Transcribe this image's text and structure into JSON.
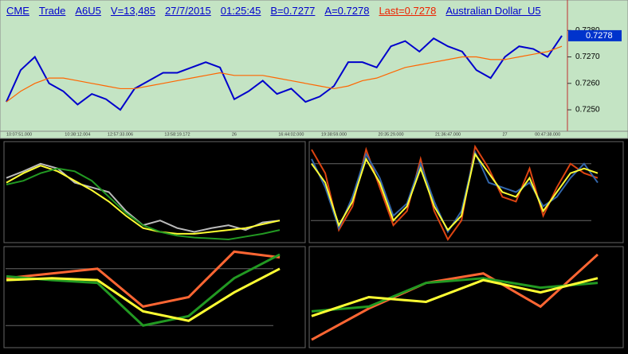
{
  "chart_data": [
    {
      "type": "line",
      "header": [
        "CME",
        "Trade",
        "A6U5",
        "V=13,485",
        "27/7/2015",
        "01:25:45",
        "B=0.7277",
        "A=0.7278",
        "Last=0.7278",
        "Australian Dollar  U5"
      ],
      "categories": [
        "10:07:51.000",
        null,
        null,
        null,
        null,
        "10:38:12.004",
        null,
        null,
        "12:57:33.006",
        null,
        null,
        null,
        "13:58:19.172",
        null,
        null,
        null,
        "26",
        null,
        null,
        null,
        "16:44:02.000",
        null,
        null,
        "19:38:59.000",
        null,
        null,
        null,
        "20:35:29.000",
        null,
        null,
        null,
        "21:36:47.000",
        null,
        null,
        null,
        "27",
        null,
        null,
        "00:47:38.000",
        null
      ],
      "series": [
        {
          "color": "#0000cc",
          "values": [
            0.7253,
            0.7265,
            0.727,
            0.726,
            0.7257,
            0.7252,
            0.7256,
            0.7254,
            0.725,
            0.7258,
            0.7261,
            0.7264,
            0.7264,
            0.7266,
            0.7268,
            0.7266,
            0.7254,
            0.7257,
            0.7261,
            0.7256,
            0.7258,
            0.7253,
            0.7255,
            0.7259,
            0.7268,
            0.7268,
            0.7266,
            0.7274,
            0.7276,
            0.7272,
            0.7277,
            0.7274,
            0.7272,
            0.7265,
            0.7262,
            0.727,
            0.7274,
            0.7273,
            0.727,
            0.7278
          ]
        },
        {
          "color": "#ff6600",
          "values": [
            0.7253,
            0.7257,
            0.726,
            0.7262,
            0.7262,
            0.7261,
            0.726,
            0.7259,
            0.7258,
            0.7258,
            0.7259,
            0.726,
            0.7261,
            0.7262,
            0.7263,
            0.7264,
            0.7263,
            0.7263,
            0.7263,
            0.7262,
            0.7261,
            0.726,
            0.7259,
            0.7258,
            0.7259,
            0.7261,
            0.7262,
            0.7264,
            0.7266,
            0.7267,
            0.7268,
            0.7269,
            0.727,
            0.727,
            0.7269,
            0.7269,
            0.727,
            0.7271,
            0.7272,
            0.7274
          ]
        }
      ],
      "ylim": [
        0.72425,
        0.729
      ],
      "yticks": [
        {
          "value": 0.725,
          "label": "0.7250"
        },
        {
          "value": 0.726,
          "label": "0.7260"
        },
        {
          "value": 0.727,
          "label": "0.7270"
        },
        {
          "value": 0.728,
          "label": "0.7280"
        }
      ],
      "last": 0.7278,
      "last_color": "#0033cc"
    },
    {
      "type": "line",
      "ylim": [
        0,
        100
      ],
      "series": [
        {
          "color": "#bbbbbb",
          "values": [
            65,
            72,
            80,
            75,
            60,
            55,
            50,
            30,
            15,
            20,
            12,
            8,
            12,
            15,
            10,
            18,
            20
          ]
        },
        {
          "color": "#ffff33",
          "values": [
            60,
            70,
            78,
            72,
            62,
            52,
            40,
            25,
            12,
            8,
            6,
            6,
            8,
            10,
            12,
            16,
            20
          ]
        },
        {
          "color": "#229922",
          "values": [
            58,
            62,
            70,
            75,
            72,
            62,
            45,
            28,
            15,
            8,
            4,
            2,
            1,
            0,
            3,
            6,
            10
          ]
        }
      ]
    },
    {
      "type": "line",
      "ylim": [
        0,
        100
      ],
      "yticks": [
        20,
        80
      ],
      "series": [
        {
          "color": "#dd4411",
          "values": [
            95,
            70,
            10,
            35,
            95,
            55,
            15,
            30,
            85,
            30,
            0,
            20,
            98,
            75,
            45,
            40,
            75,
            25,
            55,
            80,
            70,
            65
          ]
        },
        {
          "color": "#3366aa",
          "values": [
            85,
            55,
            12,
            45,
            90,
            65,
            25,
            38,
            80,
            40,
            8,
            30,
            92,
            60,
            55,
            50,
            60,
            35,
            45,
            65,
            80,
            60
          ]
        },
        {
          "color": "#ffff33",
          "values": [
            80,
            60,
            15,
            40,
            85,
            60,
            20,
            35,
            75,
            35,
            10,
            25,
            90,
            70,
            50,
            45,
            65,
            30,
            50,
            70,
            75,
            70
          ]
        }
      ]
    },
    {
      "type": "line",
      "ylim": [
        0,
        100
      ],
      "yticks": [
        20,
        80
      ],
      "series": [
        {
          "color": "#ff6633",
          "values": [
            70,
            75,
            80,
            40,
            50,
            98,
            92
          ]
        },
        {
          "color": "#229922",
          "values": [
            72,
            68,
            65,
            20,
            30,
            70,
            95
          ]
        },
        {
          "color": "#ffff33",
          "values": [
            68,
            70,
            68,
            35,
            25,
            55,
            80
          ]
        }
      ]
    },
    {
      "type": "line",
      "ylim": [
        0,
        100
      ],
      "series": [
        {
          "color": "#ff6633",
          "values": [
            5,
            38,
            65,
            75,
            40,
            95
          ]
        },
        {
          "color": "#229922",
          "values": [
            35,
            40,
            65,
            70,
            60,
            65
          ]
        },
        {
          "color": "#ffff33",
          "values": [
            30,
            50,
            45,
            68,
            55,
            70
          ]
        }
      ]
    }
  ]
}
